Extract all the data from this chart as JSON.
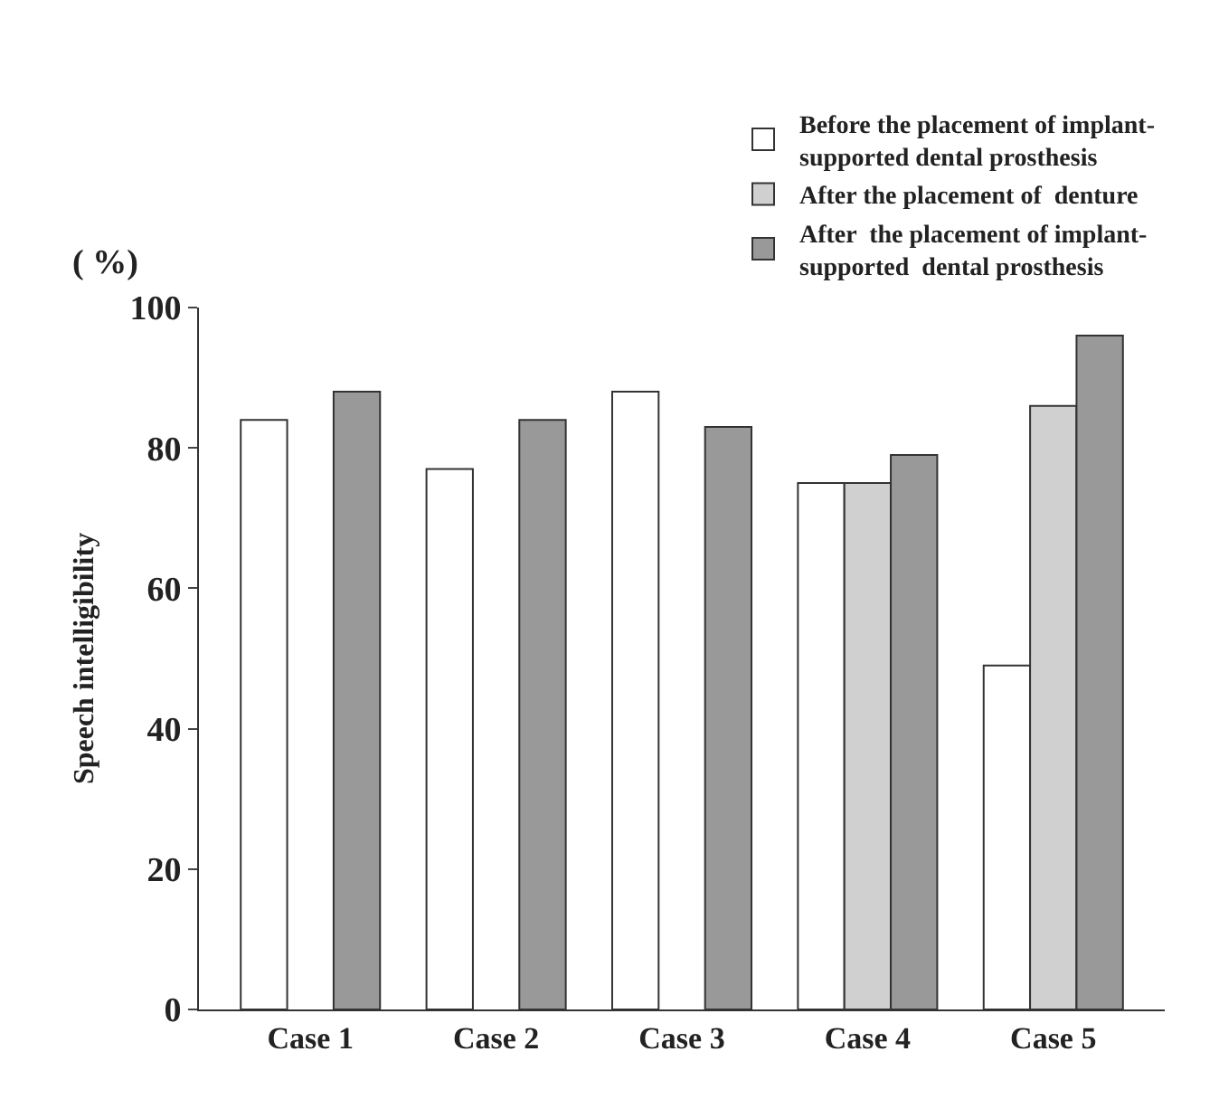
{
  "chart_data": {
    "type": "bar",
    "ylabel": "Speech intelligibility",
    "annotations": [
      "( %)"
    ],
    "categories": [
      "Case 1",
      "Case 2",
      "Case 3",
      "Case 4",
      "Case 5"
    ],
    "series": [
      {
        "name": "Before the placement of implant-supported dental prosthesis",
        "color": "#ffffff",
        "values": [
          84,
          77,
          88,
          75,
          49
        ]
      },
      {
        "name": "After the placement of  denture",
        "color": "#d0d0d0",
        "values": [
          null,
          null,
          null,
          75,
          86
        ]
      },
      {
        "name": "After  the placement of implant-supported  dental prosthesis",
        "color": "#999999",
        "values": [
          88,
          84,
          83,
          79,
          96
        ]
      }
    ],
    "ylim": [
      0,
      100
    ],
    "yticks": [
      0,
      20,
      40,
      60,
      80,
      100
    ],
    "legend": "top right"
  }
}
